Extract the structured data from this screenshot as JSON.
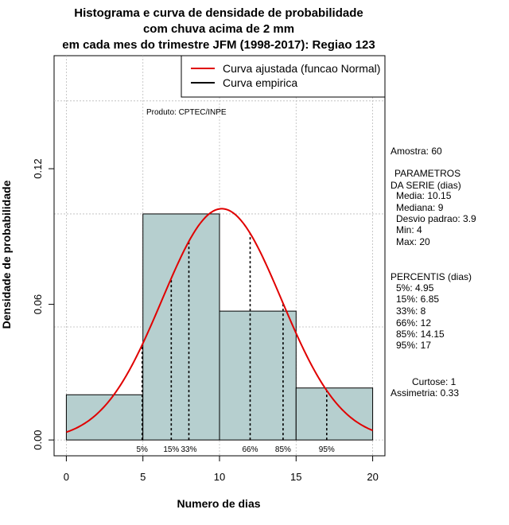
{
  "chart_data": {
    "type": "bar",
    "title_lines": [
      "Histograma e curva de densidade de probabilidade",
      "com chuva acima de 2 mm",
      "em cada mes do trimestre JFM (1998-2017): Regiao 123"
    ],
    "xlabel": "Numero de dias",
    "ylabel": "Densidade de probabilidade",
    "xlim": [
      -0.8,
      20.8
    ],
    "ylim": [
      -0.007,
      0.17
    ],
    "x_ticks": [
      "0",
      "5",
      "10",
      "15",
      "20"
    ],
    "x_tick_values": [
      0,
      5,
      10,
      15,
      20
    ],
    "y_ticks": [
      "0.00",
      "0.06",
      "0.12"
    ],
    "y_tick_values": [
      0,
      0.06,
      0.12
    ],
    "grid_x": [
      0,
      5,
      10,
      15,
      20
    ],
    "grid_y": [
      0,
      0.05,
      0.1,
      0.15
    ],
    "bins": [
      {
        "from": 0,
        "to": 5,
        "density": 0.02
      },
      {
        "from": 5,
        "to": 10,
        "density": 0.1
      },
      {
        "from": 10,
        "to": 15,
        "density": 0.057
      },
      {
        "from": 15,
        "to": 20,
        "density": 0.023
      }
    ],
    "normal_fit": {
      "mean": 10.15,
      "sd": 3.9,
      "xmin": 0,
      "xmax": 20
    },
    "percentiles": [
      {
        "label": "5%",
        "value": 4.95
      },
      {
        "label": "15%",
        "value": 6.85
      },
      {
        "label": "33%",
        "value": 8
      },
      {
        "label": "66%",
        "value": 12
      },
      {
        "label": "85%",
        "value": 14.15
      },
      {
        "label": "95%",
        "value": 17
      }
    ],
    "legend": {
      "position": "top-right",
      "items": [
        {
          "label": "Curva ajustada (funcao Normal)",
          "color": "#e00000"
        },
        {
          "label": "Curva empirica",
          "color": "#000000"
        }
      ]
    },
    "credit": "Produto: CPTEC/INPE",
    "stats_lines": [
      "Amostra: 60",
      "PARAMETROS",
      "DA SERIE (dias)",
      "Media: 10.15",
      "Mediana: 9",
      "Desvio padrao: 3.9",
      "Min: 4",
      "Max: 20",
      "PERCENTIS (dias)",
      "5%: 4.95",
      "15%: 6.85",
      "33%: 8",
      "66%: 12",
      "85%: 14.15",
      "95%: 17",
      "Curtose: 1",
      "Assimetria: 0.33"
    ],
    "colors": {
      "bar_fill": "#b6cfcf",
      "curve": "#e00000",
      "grid": "#bbbbbb"
    }
  }
}
